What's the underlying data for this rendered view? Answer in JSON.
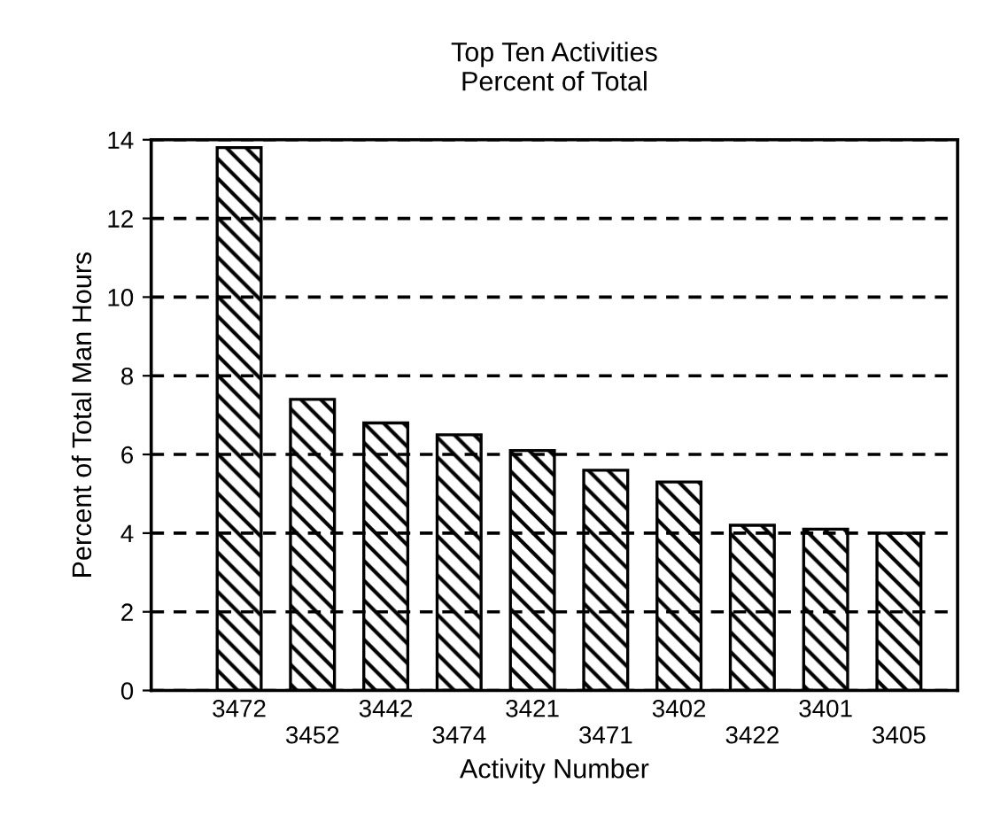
{
  "chart_data": {
    "type": "bar",
    "title": "Top Ten Activities\nPercent of Total",
    "xlabel": "Activity Number",
    "ylabel": "Percent of Total Man Hours",
    "categories": [
      "3472",
      "3452",
      "3442",
      "3474",
      "3421",
      "3471",
      "3402",
      "3422",
      "3401",
      "3405"
    ],
    "values": [
      13.8,
      7.4,
      6.8,
      6.5,
      6.1,
      5.6,
      5.3,
      4.2,
      4.1,
      4.0
    ],
    "color": "#000000",
    "ylim": [
      0,
      14
    ],
    "yticks": [
      0,
      2,
      4,
      6,
      8,
      10,
      12,
      14
    ],
    "grid": "y",
    "line_style": "dashed"
  }
}
